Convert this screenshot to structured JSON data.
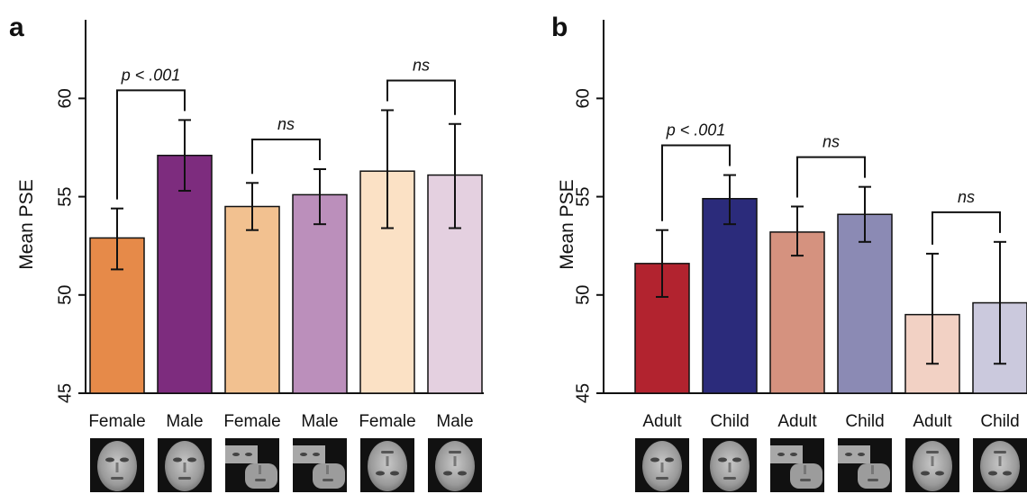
{
  "chart_data": [
    {
      "type": "bar",
      "panel": "a",
      "ylabel": "Mean PSE",
      "ylim": [
        45,
        64
      ],
      "yticks": [
        45,
        50,
        55,
        60
      ],
      "categories": [
        "Female",
        "Male",
        "Female",
        "Male",
        "Female",
        "Male"
      ],
      "values": [
        52.9,
        57.1,
        54.5,
        55.1,
        56.3,
        56.1
      ],
      "error": [
        [
          51.3,
          54.4
        ],
        [
          55.3,
          58.9
        ],
        [
          53.3,
          55.7
        ],
        [
          53.6,
          56.4
        ],
        [
          53.4,
          59.4
        ],
        [
          53.4,
          58.7
        ]
      ],
      "colors": [
        "#e68a49",
        "#7d2c7e",
        "#f2c190",
        "#bb8fbb",
        "#fbe1c5",
        "#e4d0e0"
      ],
      "stimuli": [
        "whole-face",
        "whole-face",
        "split-face",
        "split-face",
        "inverted-face",
        "inverted-face"
      ],
      "comparisons": [
        {
          "pair": [
            0,
            1
          ],
          "label": "p < .001"
        },
        {
          "pair": [
            2,
            3
          ],
          "label": "ns"
        },
        {
          "pair": [
            4,
            5
          ],
          "label": "ns"
        }
      ]
    },
    {
      "type": "bar",
      "panel": "b",
      "ylabel": "Mean PSE",
      "ylim": [
        45,
        64
      ],
      "yticks": [
        45,
        50,
        55,
        60
      ],
      "categories": [
        "Adult",
        "Child",
        "Adult",
        "Child",
        "Adult",
        "Child"
      ],
      "values": [
        51.6,
        54.9,
        53.2,
        54.1,
        49.0,
        49.6
      ],
      "error": [
        [
          49.9,
          53.3
        ],
        [
          53.6,
          56.1
        ],
        [
          52.0,
          54.5
        ],
        [
          52.7,
          55.5
        ],
        [
          46.5,
          52.1
        ],
        [
          46.5,
          52.7
        ]
      ],
      "colors": [
        "#b2232f",
        "#2b2b7b",
        "#d5927f",
        "#8b8ab4",
        "#f2d1c4",
        "#cbc9dd"
      ],
      "stimuli": [
        "whole-face",
        "whole-face",
        "split-face",
        "split-face",
        "inverted-face",
        "inverted-face"
      ],
      "comparisons": [
        {
          "pair": [
            0,
            1
          ],
          "label": "p < .001"
        },
        {
          "pair": [
            2,
            3
          ],
          "label": "ns"
        },
        {
          "pair": [
            4,
            5
          ],
          "label": "ns"
        }
      ]
    }
  ]
}
